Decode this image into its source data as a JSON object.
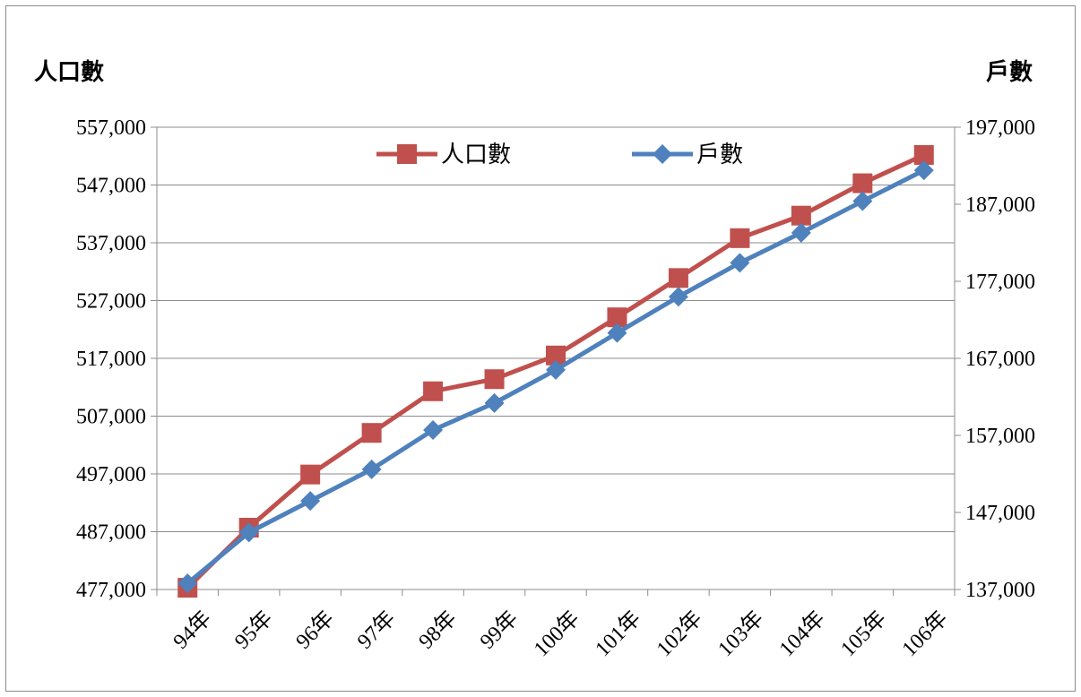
{
  "chart_data": {
    "type": "line",
    "categories": [
      "94年",
      "95年",
      "96年",
      "97年",
      "98年",
      "99年",
      "100年",
      "101年",
      "102年",
      "103年",
      "104年",
      "105年",
      "106年"
    ],
    "y_left": {
      "label": "人口數",
      "min": 477000,
      "max": 557000,
      "step": 10000,
      "ticks": [
        "477,000",
        "487,000",
        "497,000",
        "507,000",
        "517,000",
        "527,000",
        "537,000",
        "547,000",
        "557,000"
      ]
    },
    "y_right": {
      "label": "戶數",
      "min": 137000,
      "max": 197000,
      "step": 10000,
      "ticks": [
        "137,000",
        "147,000",
        "157,000",
        "167,000",
        "177,000",
        "187,000",
        "197,000"
      ]
    },
    "series": [
      {
        "name": "人口數",
        "axis": "left",
        "color": "#c0504d",
        "marker": "square",
        "values": [
          477300,
          487700,
          496900,
          504100,
          511300,
          513400,
          517500,
          524100,
          530900,
          537800,
          541700,
          547300,
          552200
        ]
      },
      {
        "name": "戶數",
        "axis": "right",
        "color": "#4f81bd",
        "marker": "diamond",
        "values": [
          137800,
          144400,
          148500,
          152600,
          157700,
          161200,
          165500,
          170300,
          175000,
          179400,
          183300,
          187400,
          191400
        ]
      }
    ],
    "grid": true,
    "legend_position": "top-center"
  }
}
